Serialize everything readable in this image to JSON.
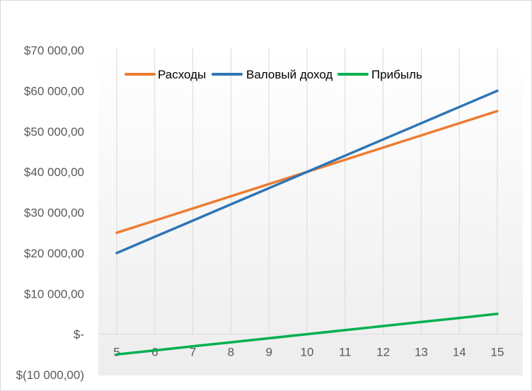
{
  "chart_data": {
    "type": "line",
    "title": "",
    "xlabel": "",
    "ylabel": "",
    "x": [
      5,
      6,
      7,
      8,
      9,
      10,
      11,
      12,
      13,
      14,
      15
    ],
    "x_tick_labels": [
      "5",
      "6",
      "7",
      "8",
      "9",
      "10",
      "11",
      "12",
      "13",
      "14",
      "15"
    ],
    "ylim": [
      -10000,
      70000
    ],
    "y_ticks": [
      -10000,
      0,
      10000,
      20000,
      30000,
      40000,
      50000,
      60000,
      70000
    ],
    "y_tick_labels": [
      "$(10 000,00)",
      "$-",
      "$10 000,00",
      "$20 000,00",
      "$30 000,00",
      "$40 000,00",
      "$50 000,00",
      "$60 000,00",
      "$70 000,00"
    ],
    "grid": "vertical",
    "legend_position": "top-center",
    "series": [
      {
        "name": "Расходы",
        "color": "#ED7D31",
        "values": [
          25000,
          28000,
          31000,
          34000,
          37000,
          40000,
          43000,
          46000,
          49000,
          52000,
          55000
        ]
      },
      {
        "name": "Валовый доход",
        "color": "#2E75B6",
        "values": [
          20000,
          24000,
          28000,
          32000,
          36000,
          40000,
          44000,
          48000,
          52000,
          56000,
          60000
        ]
      },
      {
        "name": "Прибыль",
        "color": "#00B050",
        "values": [
          -5000,
          -4000,
          -3000,
          -2000,
          -1000,
          0,
          1000,
          2000,
          3000,
          4000,
          5000
        ]
      }
    ]
  }
}
